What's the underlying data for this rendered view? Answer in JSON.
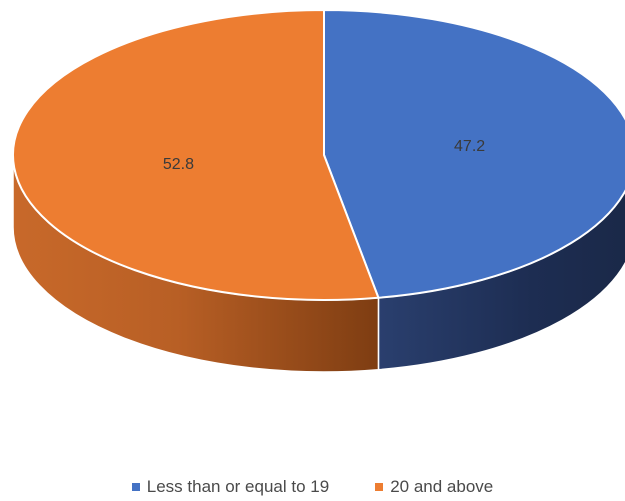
{
  "chart_data": {
    "type": "pie",
    "style": "3d",
    "categories": [
      "Less than or equal to 19",
      "20 and above"
    ],
    "values": [
      47.2,
      52.8
    ],
    "data_labels": [
      "47.2",
      "52.8"
    ],
    "colors": [
      "#4472C4",
      "#ED7D31"
    ],
    "legend_position": "bottom"
  },
  "legend": {
    "items": [
      {
        "label": "Less than or equal to 19",
        "color": "#4472C4"
      },
      {
        "label": "20 and above",
        "color": "#ED7D31"
      }
    ]
  }
}
